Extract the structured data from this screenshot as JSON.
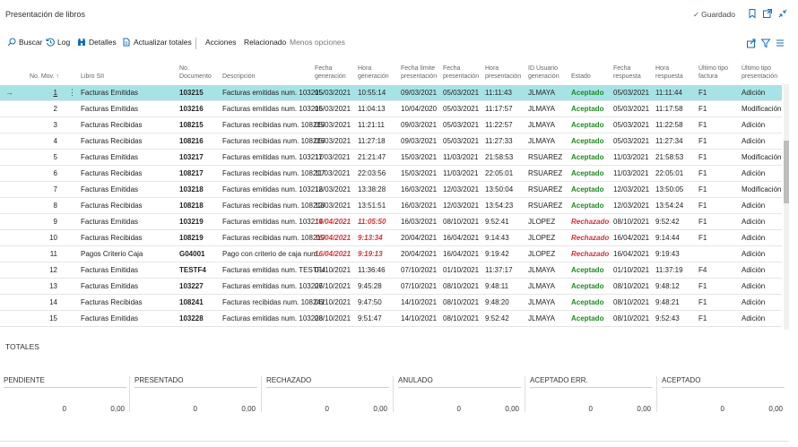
{
  "page": {
    "title": "Presentación de libros",
    "saved": "Guardado"
  },
  "actions": {
    "buscar": "Buscar",
    "log": "Log",
    "detalles": "Detalles",
    "actualizar": "Actualizar totales",
    "acciones": "Acciones",
    "relacionado": "Relacionado",
    "menos": "Menos opciones"
  },
  "columns": {
    "no_mov": "No. Mov. ↑",
    "libro": "Libro SII",
    "no_doc_1": "No.",
    "no_doc_2": "Documento",
    "descripcion": "Descripción",
    "fecha_gen_1": "Fecha",
    "fecha_gen_2": "generación",
    "hora_gen_1": "Hora",
    "hora_gen_2": "generación",
    "fecha_lim_1": "Fecha límite",
    "fecha_lim_2": "presentación",
    "fecha_pres_1": "Fecha",
    "fecha_pres_2": "presentación",
    "hora_pres_1": "Hora",
    "hora_pres_2": "presentación",
    "usuario_1": "ID Usuario",
    "usuario_2": "generación",
    "estado": "Estado",
    "fecha_resp_1": "Fecha",
    "fecha_resp_2": "respuesta",
    "hora_resp_1": "Hora",
    "hora_resp_2": "respuesta",
    "ult_tipo_1": "Último tipo",
    "ult_tipo_2": "factura",
    "ult_pres_1": "Último tipo",
    "ult_pres_2": "presentación"
  },
  "rows": [
    {
      "no": "1",
      "libro": "Facturas Emitidas",
      "doc": "103215",
      "desc": "Facturas emitidas num. 103215",
      "fgen": "05/03/2021",
      "hgen": "10:55:14",
      "flim": "09/03/2021",
      "fpres": "05/03/2021",
      "hpres": "11:11:43",
      "user": "JLMAYA",
      "estado": "Aceptado",
      "fresp": "05/03/2021",
      "hresp": "11:11:44",
      "tipo": "F1",
      "pres": "Adición"
    },
    {
      "no": "2",
      "libro": "Facturas Emitidas",
      "doc": "103216",
      "desc": "Facturas emitidas num. 103216",
      "fgen": "05/03/2021",
      "hgen": "11:04:13",
      "flim": "10/04/2020",
      "fpres": "05/03/2021",
      "hpres": "11:17:57",
      "user": "JLMAYA",
      "estado": "Aceptado",
      "fresp": "05/03/2021",
      "hresp": "11:17:58",
      "tipo": "F1",
      "pres": "Modificación"
    },
    {
      "no": "3",
      "libro": "Facturas Recibidas",
      "doc": "108215",
      "desc": "Facturas recibidas num. 108215",
      "fgen": "05/03/2021",
      "hgen": "11:21:11",
      "flim": "09/03/2021",
      "fpres": "05/03/2021",
      "hpres": "11:22:57",
      "user": "JLMAYA",
      "estado": "Aceptado",
      "fresp": "05/03/2021",
      "hresp": "11:22:58",
      "tipo": "F1",
      "pres": "Adición"
    },
    {
      "no": "4",
      "libro": "Facturas Recibidas",
      "doc": "108216",
      "desc": "Facturas recibidas num. 108216",
      "fgen": "05/03/2021",
      "hgen": "11:27:18",
      "flim": "09/03/2021",
      "fpres": "05/03/2021",
      "hpres": "11:27:33",
      "user": "JLMAYA",
      "estado": "Aceptado",
      "fresp": "05/03/2021",
      "hresp": "11:27:34",
      "tipo": "F1",
      "pres": "Adición"
    },
    {
      "no": "5",
      "libro": "Facturas Emitidas",
      "doc": "103217",
      "desc": "Facturas emitidas num. 103217",
      "fgen": "11/03/2021",
      "hgen": "21:21:47",
      "flim": "15/03/2021",
      "fpres": "11/03/2021",
      "hpres": "21:58:53",
      "user": "RSUAREZ",
      "estado": "Aceptado",
      "fresp": "11/03/2021",
      "hresp": "21:58:53",
      "tipo": "F1",
      "pres": "Modificación"
    },
    {
      "no": "6",
      "libro": "Facturas Recibidas",
      "doc": "108217",
      "desc": "Facturas recibidas num. 108217",
      "fgen": "11/03/2021",
      "hgen": "22:03:56",
      "flim": "15/03/2021",
      "fpres": "11/03/2021",
      "hpres": "22:05:01",
      "user": "RSUAREZ",
      "estado": "Aceptado",
      "fresp": "11/03/2021",
      "hresp": "22:05:01",
      "tipo": "F1",
      "pres": "Adición"
    },
    {
      "no": "7",
      "libro": "Facturas Emitidas",
      "doc": "103218",
      "desc": "Facturas emitidas num. 103218",
      "fgen": "12/03/2021",
      "hgen": "13:38:28",
      "flim": "16/03/2021",
      "fpres": "12/03/2021",
      "hpres": "13:50:04",
      "user": "RSUAREZ",
      "estado": "Aceptado",
      "fresp": "12/03/2021",
      "hresp": "13:50:05",
      "tipo": "F1",
      "pres": "Modificación"
    },
    {
      "no": "8",
      "libro": "Facturas Recibidas",
      "doc": "108218",
      "desc": "Facturas recibidas num. 108218",
      "fgen": "12/03/2021",
      "hgen": "13:51:51",
      "flim": "16/03/2021",
      "fpres": "12/03/2021",
      "hpres": "13:54:23",
      "user": "RSUAREZ",
      "estado": "Aceptado",
      "fresp": "12/03/2021",
      "hresp": "13:54:24",
      "tipo": "F1",
      "pres": "Adición"
    },
    {
      "no": "9",
      "libro": "Facturas Emitidas",
      "doc": "103219",
      "desc": "Facturas emitidas num. 103219",
      "fgen": "14/04/2021",
      "hgen": "11:05:50",
      "flim": "16/03/2021",
      "fpres": "08/10/2021",
      "hpres": "9:52:41",
      "user": "JLOPEZ",
      "estado": "Rechazado",
      "fresp": "08/10/2021",
      "hresp": "9:52:42",
      "tipo": "F1",
      "pres": "Adición",
      "late": true
    },
    {
      "no": "10",
      "libro": "Facturas Recibidas",
      "doc": "108219",
      "desc": "Facturas recibidas num. 108219",
      "fgen": "16/04/2021",
      "hgen": "9:13:34",
      "flim": "20/04/2021",
      "fpres": "16/04/2021",
      "hpres": "9:14:43",
      "user": "JLOPEZ",
      "estado": "Rechazado",
      "fresp": "16/04/2021",
      "hresp": "9:14:44",
      "tipo": "F1",
      "pres": "Adición",
      "late": true
    },
    {
      "no": "11",
      "libro": "Pagos Criterio Caja",
      "doc": "G04001",
      "desc": "Pago con criterio de caja num…",
      "fgen": "16/04/2021",
      "hgen": "9:19:13",
      "flim": "20/04/2021",
      "fpres": "16/04/2021",
      "hpres": "9:19:42",
      "user": "JLOPEZ",
      "estado": "Rechazado",
      "fresp": "16/04/2021",
      "hresp": "9:19:43",
      "tipo": "",
      "pres": "Adición",
      "late": true
    },
    {
      "no": "12",
      "libro": "Facturas Emitidas",
      "doc": "TESTF4",
      "desc": "Facturas emitidas num. TESTF4",
      "fgen": "01/10/2021",
      "hgen": "11:36:46",
      "flim": "07/10/2021",
      "fpres": "01/10/2021",
      "hpres": "11:37:17",
      "user": "JLMAYA",
      "estado": "Aceptado",
      "fresp": "01/10/2021",
      "hresp": "11:37:19",
      "tipo": "F4",
      "pres": "Adición"
    },
    {
      "no": "13",
      "libro": "Facturas Emitidas",
      "doc": "103227",
      "desc": "Facturas emitidas num. 103227",
      "fgen": "06/10/2021",
      "hgen": "9:45:28",
      "flim": "07/10/2021",
      "fpres": "08/10/2021",
      "hpres": "9:48:11",
      "user": "JLMAYA",
      "estado": "Aceptado",
      "fresp": "08/10/2021",
      "hresp": "9:48:12",
      "tipo": "F1",
      "pres": "Adición"
    },
    {
      "no": "14",
      "libro": "Facturas Recibidas",
      "doc": "108241",
      "desc": "Facturas recibidas num. 108241",
      "fgen": "06/10/2021",
      "hgen": "9:47:50",
      "flim": "14/10/2021",
      "fpres": "08/10/2021",
      "hpres": "9:48:20",
      "user": "JLMAYA",
      "estado": "Aceptado",
      "fresp": "08/10/2021",
      "hresp": "9:48:21",
      "tipo": "F1",
      "pres": "Adición"
    },
    {
      "no": "15",
      "libro": "Facturas Emitidas",
      "doc": "103228",
      "desc": "Facturas emitidas num. 103228",
      "fgen": "08/10/2021",
      "hgen": "9:51:47",
      "flim": "14/10/2021",
      "fpres": "08/10/2021",
      "hpres": "9:52:42",
      "user": "JLMAYA",
      "estado": "Aceptado",
      "fresp": "08/10/2021",
      "hresp": "9:52:43",
      "tipo": "F1",
      "pres": "Adición"
    }
  ],
  "totales": {
    "title": "TOTALES",
    "groups": [
      {
        "label": "PENDIENTE",
        "count": "0",
        "amount": "0,00"
      },
      {
        "label": "PRESENTADO",
        "count": "0",
        "amount": "0,00"
      },
      {
        "label": "RECHAZADO",
        "count": "0",
        "amount": "0,00"
      },
      {
        "label": "ANULADO",
        "count": "0",
        "amount": "0,00"
      },
      {
        "label": "ACEPTADO ERR.",
        "count": "0",
        "amount": "0,00"
      },
      {
        "label": "ACEPTADO",
        "count": "0",
        "amount": "0,00"
      }
    ]
  },
  "colors": {
    "selected_row": "#a7e3e6",
    "accepted": "#1f8a24",
    "rejected": "#d13438",
    "accent": "#0f6cbd"
  }
}
